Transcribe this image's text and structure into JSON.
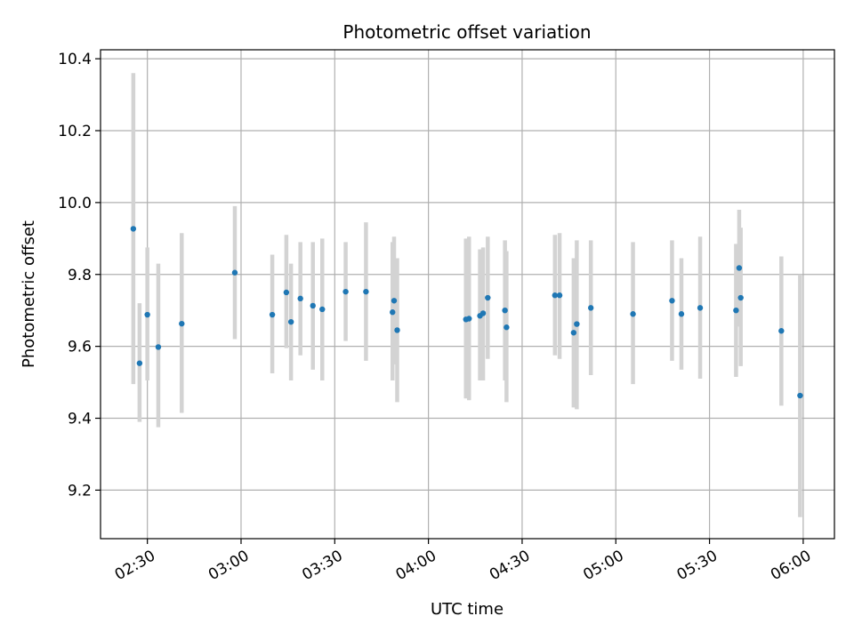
{
  "chart_data": {
    "type": "scatter",
    "title": "Photometric offset variation",
    "xlabel": "UTC time",
    "ylabel": "Photometric offset",
    "x_unit": "UTC time of day",
    "xlim": [
      "02:15",
      "06:10"
    ],
    "ylim": [
      9.065,
      10.425
    ],
    "grid": true,
    "x_ticks": [
      "02:30",
      "03:00",
      "03:30",
      "04:00",
      "04:30",
      "05:00",
      "05:30",
      "06:00"
    ],
    "y_ticks": [
      9.2,
      9.4,
      9.6,
      9.8,
      10.0,
      10.2,
      10.4
    ],
    "y_tick_labels": [
      "9.2",
      "9.4",
      "9.6",
      "9.8",
      "10.0",
      "10.2",
      "10.4"
    ],
    "colors": {
      "points": "#1f77b4",
      "error_bars": "#d3d3d3",
      "grid": "#b0b0b0"
    },
    "points": [
      {
        "x": "02:25:30",
        "y": 9.927,
        "err_low": 9.495,
        "err_high": 10.36
      },
      {
        "x": "02:27:30",
        "y": 9.553,
        "err_low": 9.39,
        "err_high": 9.72
      },
      {
        "x": "02:30:00",
        "y": 9.688,
        "err_low": 9.505,
        "err_high": 9.875
      },
      {
        "x": "02:33:30",
        "y": 9.598,
        "err_low": 9.375,
        "err_high": 9.83
      },
      {
        "x": "02:41:00",
        "y": 9.663,
        "err_low": 9.415,
        "err_high": 9.915
      },
      {
        "x": "02:58:00",
        "y": 9.805,
        "err_low": 9.62,
        "err_high": 9.99
      },
      {
        "x": "03:10:00",
        "y": 9.688,
        "err_low": 9.525,
        "err_high": 9.855
      },
      {
        "x": "03:14:30",
        "y": 9.75,
        "err_low": 9.595,
        "err_high": 9.91
      },
      {
        "x": "03:16:00",
        "y": 9.668,
        "err_low": 9.505,
        "err_high": 9.83
      },
      {
        "x": "03:19:00",
        "y": 9.733,
        "err_low": 9.575,
        "err_high": 9.89
      },
      {
        "x": "03:23:00",
        "y": 9.713,
        "err_low": 9.535,
        "err_high": 9.89
      },
      {
        "x": "03:26:00",
        "y": 9.703,
        "err_low": 9.505,
        "err_high": 9.9
      },
      {
        "x": "03:33:30",
        "y": 9.752,
        "err_low": 9.615,
        "err_high": 9.89
      },
      {
        "x": "03:40:00",
        "y": 9.752,
        "err_low": 9.56,
        "err_high": 9.945
      },
      {
        "x": "03:48:30",
        "y": 9.695,
        "err_low": 9.505,
        "err_high": 9.89
      },
      {
        "x": "03:49:00",
        "y": 9.727,
        "err_low": 9.55,
        "err_high": 9.905
      },
      {
        "x": "03:50:00",
        "y": 9.645,
        "err_low": 9.445,
        "err_high": 9.845
      },
      {
        "x": "04:12:00",
        "y": 9.675,
        "err_low": 9.455,
        "err_high": 9.9
      },
      {
        "x": "04:13:00",
        "y": 9.677,
        "err_low": 9.45,
        "err_high": 9.905
      },
      {
        "x": "04:16:30",
        "y": 9.685,
        "err_low": 9.505,
        "err_high": 9.87
      },
      {
        "x": "04:17:30",
        "y": 9.692,
        "err_low": 9.505,
        "err_high": 9.875
      },
      {
        "x": "04:19:00",
        "y": 9.735,
        "err_low": 9.565,
        "err_high": 9.905
      },
      {
        "x": "04:24:30",
        "y": 9.7,
        "err_low": 9.505,
        "err_high": 9.895
      },
      {
        "x": "04:25:00",
        "y": 9.653,
        "err_low": 9.445,
        "err_high": 9.865
      },
      {
        "x": "04:40:30",
        "y": 9.742,
        "err_low": 9.575,
        "err_high": 9.91
      },
      {
        "x": "04:42:00",
        "y": 9.742,
        "err_low": 9.565,
        "err_high": 9.915
      },
      {
        "x": "04:46:30",
        "y": 9.638,
        "err_low": 9.43,
        "err_high": 9.845
      },
      {
        "x": "04:47:30",
        "y": 9.662,
        "err_low": 9.425,
        "err_high": 9.895
      },
      {
        "x": "04:52:00",
        "y": 9.707,
        "err_low": 9.52,
        "err_high": 9.895
      },
      {
        "x": "05:05:30",
        "y": 9.69,
        "err_low": 9.495,
        "err_high": 9.89
      },
      {
        "x": "05:18:00",
        "y": 9.727,
        "err_low": 9.56,
        "err_high": 9.895
      },
      {
        "x": "05:21:00",
        "y": 9.69,
        "err_low": 9.535,
        "err_high": 9.845
      },
      {
        "x": "05:27:00",
        "y": 9.707,
        "err_low": 9.51,
        "err_high": 9.905
      },
      {
        "x": "05:38:30",
        "y": 9.7,
        "err_low": 9.515,
        "err_high": 9.885
      },
      {
        "x": "05:39:30",
        "y": 9.818,
        "err_low": 9.655,
        "err_high": 9.98
      },
      {
        "x": "05:40:00",
        "y": 9.735,
        "err_low": 9.545,
        "err_high": 9.93
      },
      {
        "x": "05:53:00",
        "y": 9.643,
        "err_low": 9.435,
        "err_high": 9.85
      },
      {
        "x": "05:59:00",
        "y": 9.463,
        "err_low": 9.125,
        "err_high": 9.8
      }
    ]
  }
}
